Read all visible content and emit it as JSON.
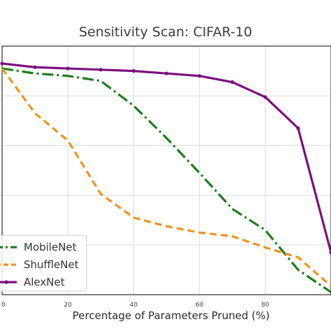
{
  "chart_data": {
    "type": "line",
    "title": "Sensitivity Scan: CIFAR-10",
    "xlabel": "Percentage of Parameters Pruned (%)",
    "ylabel": "",
    "xlim": [
      0,
      100
    ],
    "ylim": [
      0,
      100
    ],
    "xticks": [
      0,
      20,
      40,
      60,
      80
    ],
    "xtick_labels": [
      "0",
      "20",
      "40",
      "60",
      "80"
    ],
    "grid": true,
    "legend_position": "lower-left",
    "x": [
      0,
      10,
      20,
      30,
      40,
      50,
      60,
      70,
      80,
      90,
      100
    ],
    "series": [
      {
        "name": "MobileNet",
        "values": [
          91.0,
          89.0,
          88.0,
          86.0,
          76.0,
          63.0,
          49.0,
          34.5,
          26.0,
          10.0,
          1.0
        ],
        "color": "#1e7d1e",
        "style": "dashdot"
      },
      {
        "name": "ShuffleNet",
        "values": [
          91.0,
          73.0,
          62.0,
          40.5,
          31.0,
          27.5,
          25.0,
          23.5,
          19.0,
          15.0,
          3.5
        ],
        "color": "#f0921e",
        "style": "dashed"
      },
      {
        "name": "AlexNet",
        "values": [
          93.0,
          91.5,
          91.0,
          90.5,
          90.0,
          89.0,
          88.0,
          85.5,
          79.5,
          67.0,
          17.0
        ],
        "color": "#7b0f7e",
        "style": "solid"
      }
    ]
  }
}
